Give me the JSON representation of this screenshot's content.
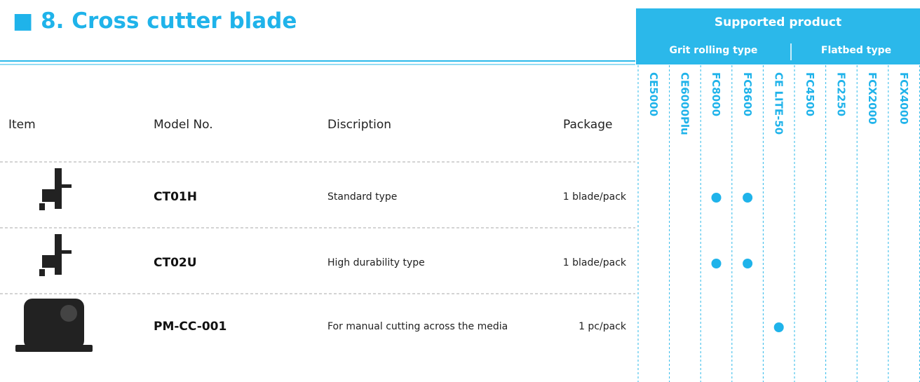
{
  "header": {
    "title": "■ 8. Cross cutter blade",
    "supported_title": "Supported product",
    "groups": [
      "Grit rolling type",
      "Flatbed type"
    ]
  },
  "table": {
    "columns": [
      "Item",
      "Model No.",
      "Discription",
      "Package"
    ],
    "products": [
      "CE5000",
      "CE6000Plu",
      "FC8000",
      "FC8600",
      "CE LITE-50",
      "FC4500",
      "FC2250",
      "FCX2000",
      "FCX4000"
    ],
    "rows": [
      {
        "model": "CT01H",
        "description": "Standard type",
        "package": "1 blade/pack",
        "supported": [
          false,
          false,
          true,
          true,
          false,
          false,
          false,
          false,
          false
        ]
      },
      {
        "model": "CT02U",
        "description": "High durability type",
        "package": "1 blade/pack",
        "supported": [
          false,
          false,
          true,
          true,
          false,
          false,
          false,
          false,
          false
        ]
      },
      {
        "model": "PM-CC-001",
        "description": "For manual cutting across the media",
        "package": "1 pc/pack",
        "supported": [
          false,
          false,
          false,
          false,
          true,
          false,
          false,
          false,
          false
        ]
      }
    ]
  }
}
